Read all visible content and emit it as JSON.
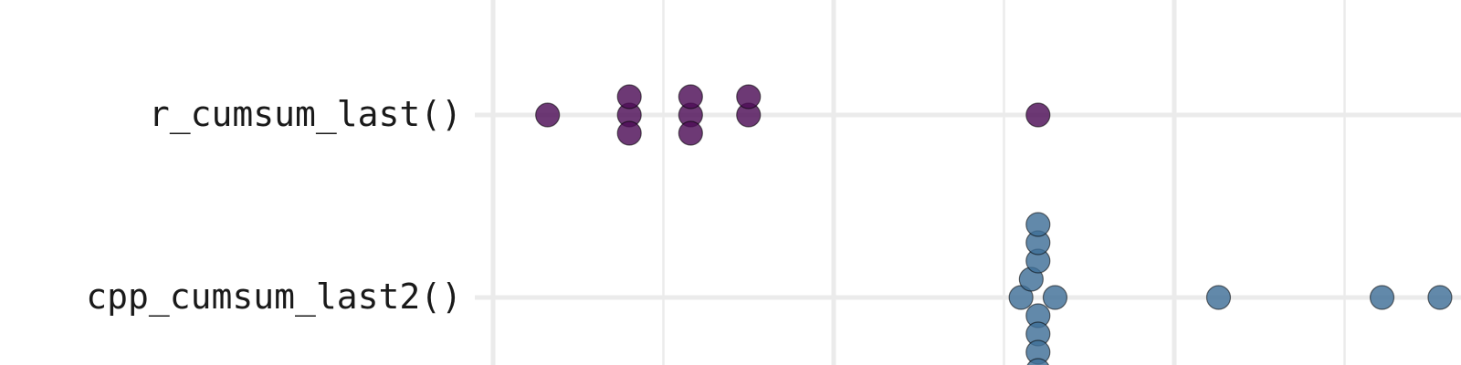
{
  "chart_data": {
    "type": "scatter",
    "subtype": "beeswarm",
    "title": "",
    "xlabel": "",
    "ylabel": "",
    "grid": true,
    "legend": "none",
    "categories": [
      "r_cumsum_last()",
      "cpp_cumsum_last2()"
    ],
    "series": [
      {
        "category": "r_cumsum_last()",
        "color": "#4d0e57",
        "values": [
          0.16,
          0.4,
          0.4,
          0.4,
          0.58,
          0.58,
          0.58,
          0.75,
          0.75,
          1.6
        ]
      },
      {
        "category": "cpp_cumsum_last2()",
        "color": "#3f6f97",
        "values": [
          1.55,
          1.58,
          1.6,
          1.6,
          1.6,
          1.6,
          1.6,
          1.6,
          1.6,
          1.65,
          2.13,
          2.61,
          2.78
        ]
      }
    ]
  }
}
